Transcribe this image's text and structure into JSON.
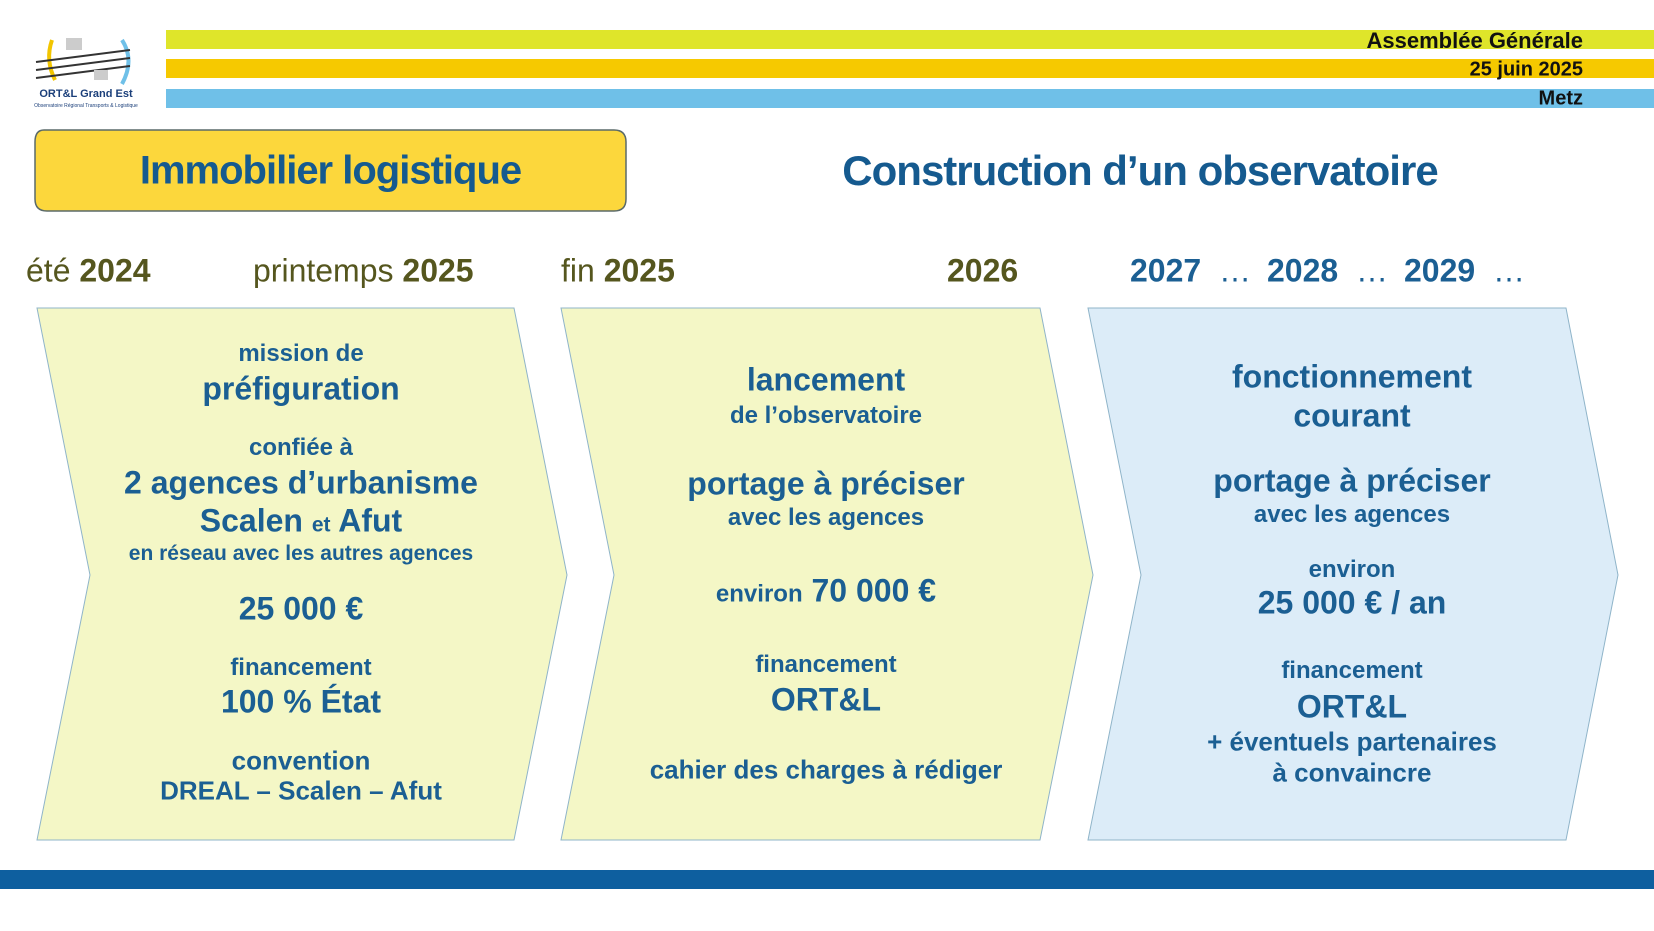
{
  "header": {
    "logo_name": "ORT&L Grand Est",
    "logo_subtitle": "Observatoire Régional Transports & Logistique",
    "event": "Assemblée Générale",
    "date": "25 juin 2025",
    "place": "Metz"
  },
  "tag": "Immobilier logistique",
  "title": "Construction d’un observatoire",
  "timeline": [
    {
      "prefix": "été",
      "year": "2024"
    },
    {
      "prefix": "printemps",
      "year": "2025"
    },
    {
      "prefix": "fin",
      "year": "2025"
    },
    {
      "year": "2026"
    },
    {
      "year": "2027",
      "dots": "…"
    },
    {
      "year": "2028",
      "dots": "…"
    },
    {
      "year": "2029",
      "dots": "…"
    }
  ],
  "panels": [
    {
      "lines": [
        "mission de",
        "préfiguration",
        "confiée à",
        "2 agences d’urbanisme",
        [
          "Scalen",
          "et",
          "Afut"
        ],
        "en réseau avec les autres agences",
        "25 000 €",
        "financement",
        "100 % État",
        "convention",
        "DREAL – Scalen – Afut"
      ]
    },
    {
      "lines": [
        "lancement",
        "de l’observatoire",
        "portage à préciser",
        "avec les agences",
        [
          "environ",
          "70 000 €"
        ],
        "financement",
        "ORT&L",
        "cahier des charges à rédiger"
      ]
    },
    {
      "lines": [
        "fonctionnement",
        "courant",
        "portage à préciser",
        "avec les agences",
        "environ",
        "25 000 € / an",
        "financement",
        "ORT&L",
        "+ éventuels partenaires",
        "à convaincre"
      ]
    }
  ]
}
